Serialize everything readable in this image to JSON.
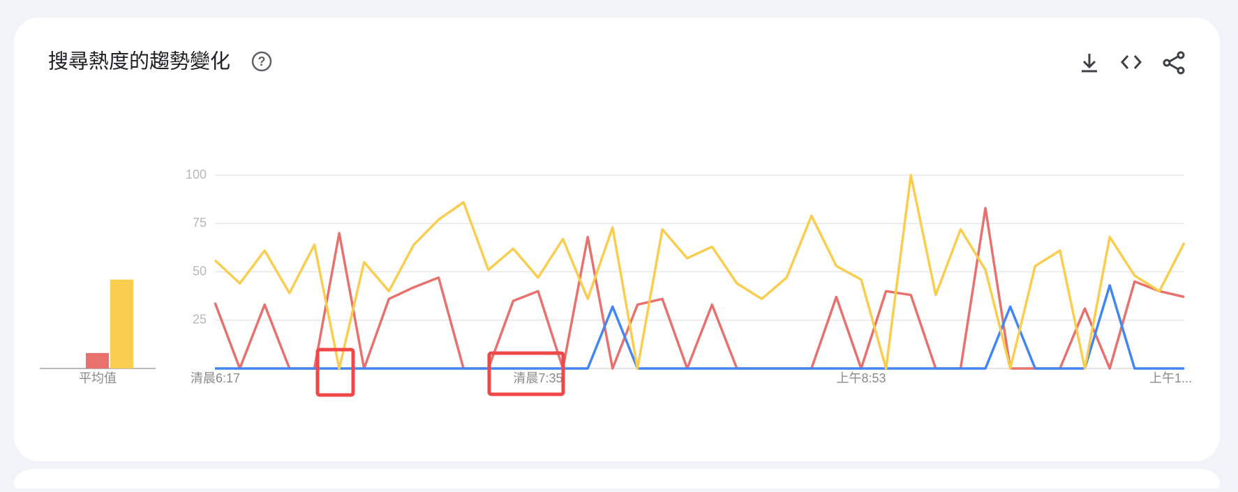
{
  "title": "搜尋熱度的趨勢變化",
  "chart_data": [
    {
      "type": "bar",
      "categories": [
        "平均值"
      ],
      "series": [
        {
          "color": "#e8716d",
          "values": [
            8
          ]
        },
        {
          "color": "#fbcd4f",
          "values": [
            46
          ]
        }
      ],
      "ylim": [
        0,
        100
      ]
    },
    {
      "type": "line",
      "categories": [
        "清晨6:17",
        null,
        null,
        null,
        null,
        null,
        null,
        null,
        null,
        null,
        null,
        null,
        null,
        "清晨7:35",
        null,
        null,
        null,
        null,
        null,
        null,
        null,
        null,
        null,
        null,
        null,
        null,
        "上午8:53",
        null,
        null,
        null,
        null,
        null,
        null,
        null,
        null,
        null,
        null,
        null,
        null,
        "上午1..."
      ],
      "series": [
        {
          "color": "#e8716d",
          "values": [
            34,
            0,
            33,
            0,
            0,
            70,
            0,
            36,
            42,
            47,
            0,
            0,
            35,
            40,
            0,
            68,
            0,
            33,
            36,
            0,
            33,
            0,
            0,
            0,
            0,
            37,
            0,
            40,
            38,
            0,
            0,
            83,
            0,
            0,
            0,
            31,
            0,
            45,
            40,
            37
          ]
        },
        {
          "color": "#4285f4",
          "values": [
            0,
            0,
            0,
            0,
            0,
            0,
            0,
            0,
            0,
            0,
            0,
            0,
            0,
            0,
            0,
            0,
            32,
            0,
            0,
            0,
            0,
            0,
            0,
            0,
            0,
            0,
            0,
            0,
            0,
            0,
            0,
            0,
            32,
            0,
            0,
            0,
            43,
            0,
            0,
            0
          ]
        },
        {
          "color": "#fbcd4f",
          "values": [
            56,
            44,
            61,
            39,
            64,
            0,
            55,
            40,
            64,
            77,
            86,
            51,
            62,
            47,
            67,
            36,
            73,
            0,
            72,
            57,
            63,
            44,
            36,
            47,
            79,
            53,
            46,
            0,
            100,
            38,
            72,
            51,
            0,
            53,
            61,
            0,
            68,
            48,
            40,
            65
          ]
        }
      ],
      "ylim": [
        0,
        100
      ],
      "yticks": [
        25,
        50,
        75,
        100
      ],
      "grid": true
    }
  ]
}
